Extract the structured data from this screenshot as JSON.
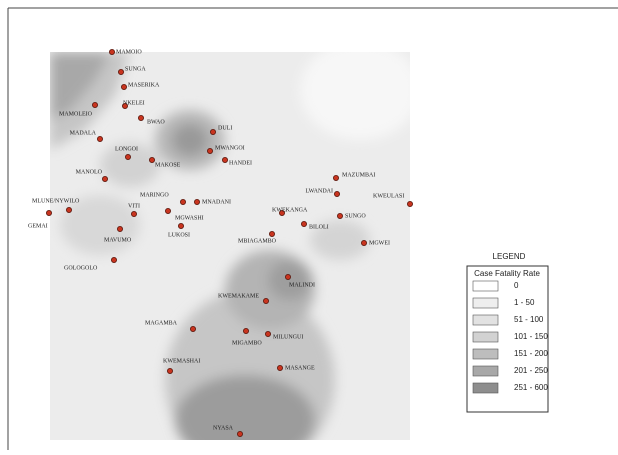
{
  "places": [
    "MAMOIO",
    "SUNGA",
    "MASERIKA",
    "NKELEI",
    "MAMOLEIO",
    "MADALA",
    "BWAO",
    "DULI",
    "MWANGOI",
    "HANDEI",
    "LONGOI",
    "MAKOSE",
    "MANOLO",
    "MAZUMBAI",
    "LWANDAI",
    "KWEULASI",
    "MLUNE/NYWILO",
    "GEMAI",
    "VITI",
    "MARINGO",
    "MNADANI",
    "MGWASHI",
    "LUKOSI",
    "KWEKANGA",
    "BILOLI",
    "SUNGO",
    "MGWEI",
    "MBIAGAMBO",
    "MAVUMO",
    "GOLOGOLO",
    "MALINDI",
    "KWEMAKAME",
    "MAGAMBA",
    "MIGAMBO",
    "MILUNGUI",
    "KWEMASHAI",
    "MASANGE",
    "NYASA"
  ],
  "legend": {
    "heading": "LEGEND",
    "title": "Case Fatality Rate",
    "classes": [
      "0",
      "1 - 50",
      "51 - 100",
      "101 - 150",
      "151 - 200",
      "201 - 250",
      "251 - 600"
    ]
  }
}
